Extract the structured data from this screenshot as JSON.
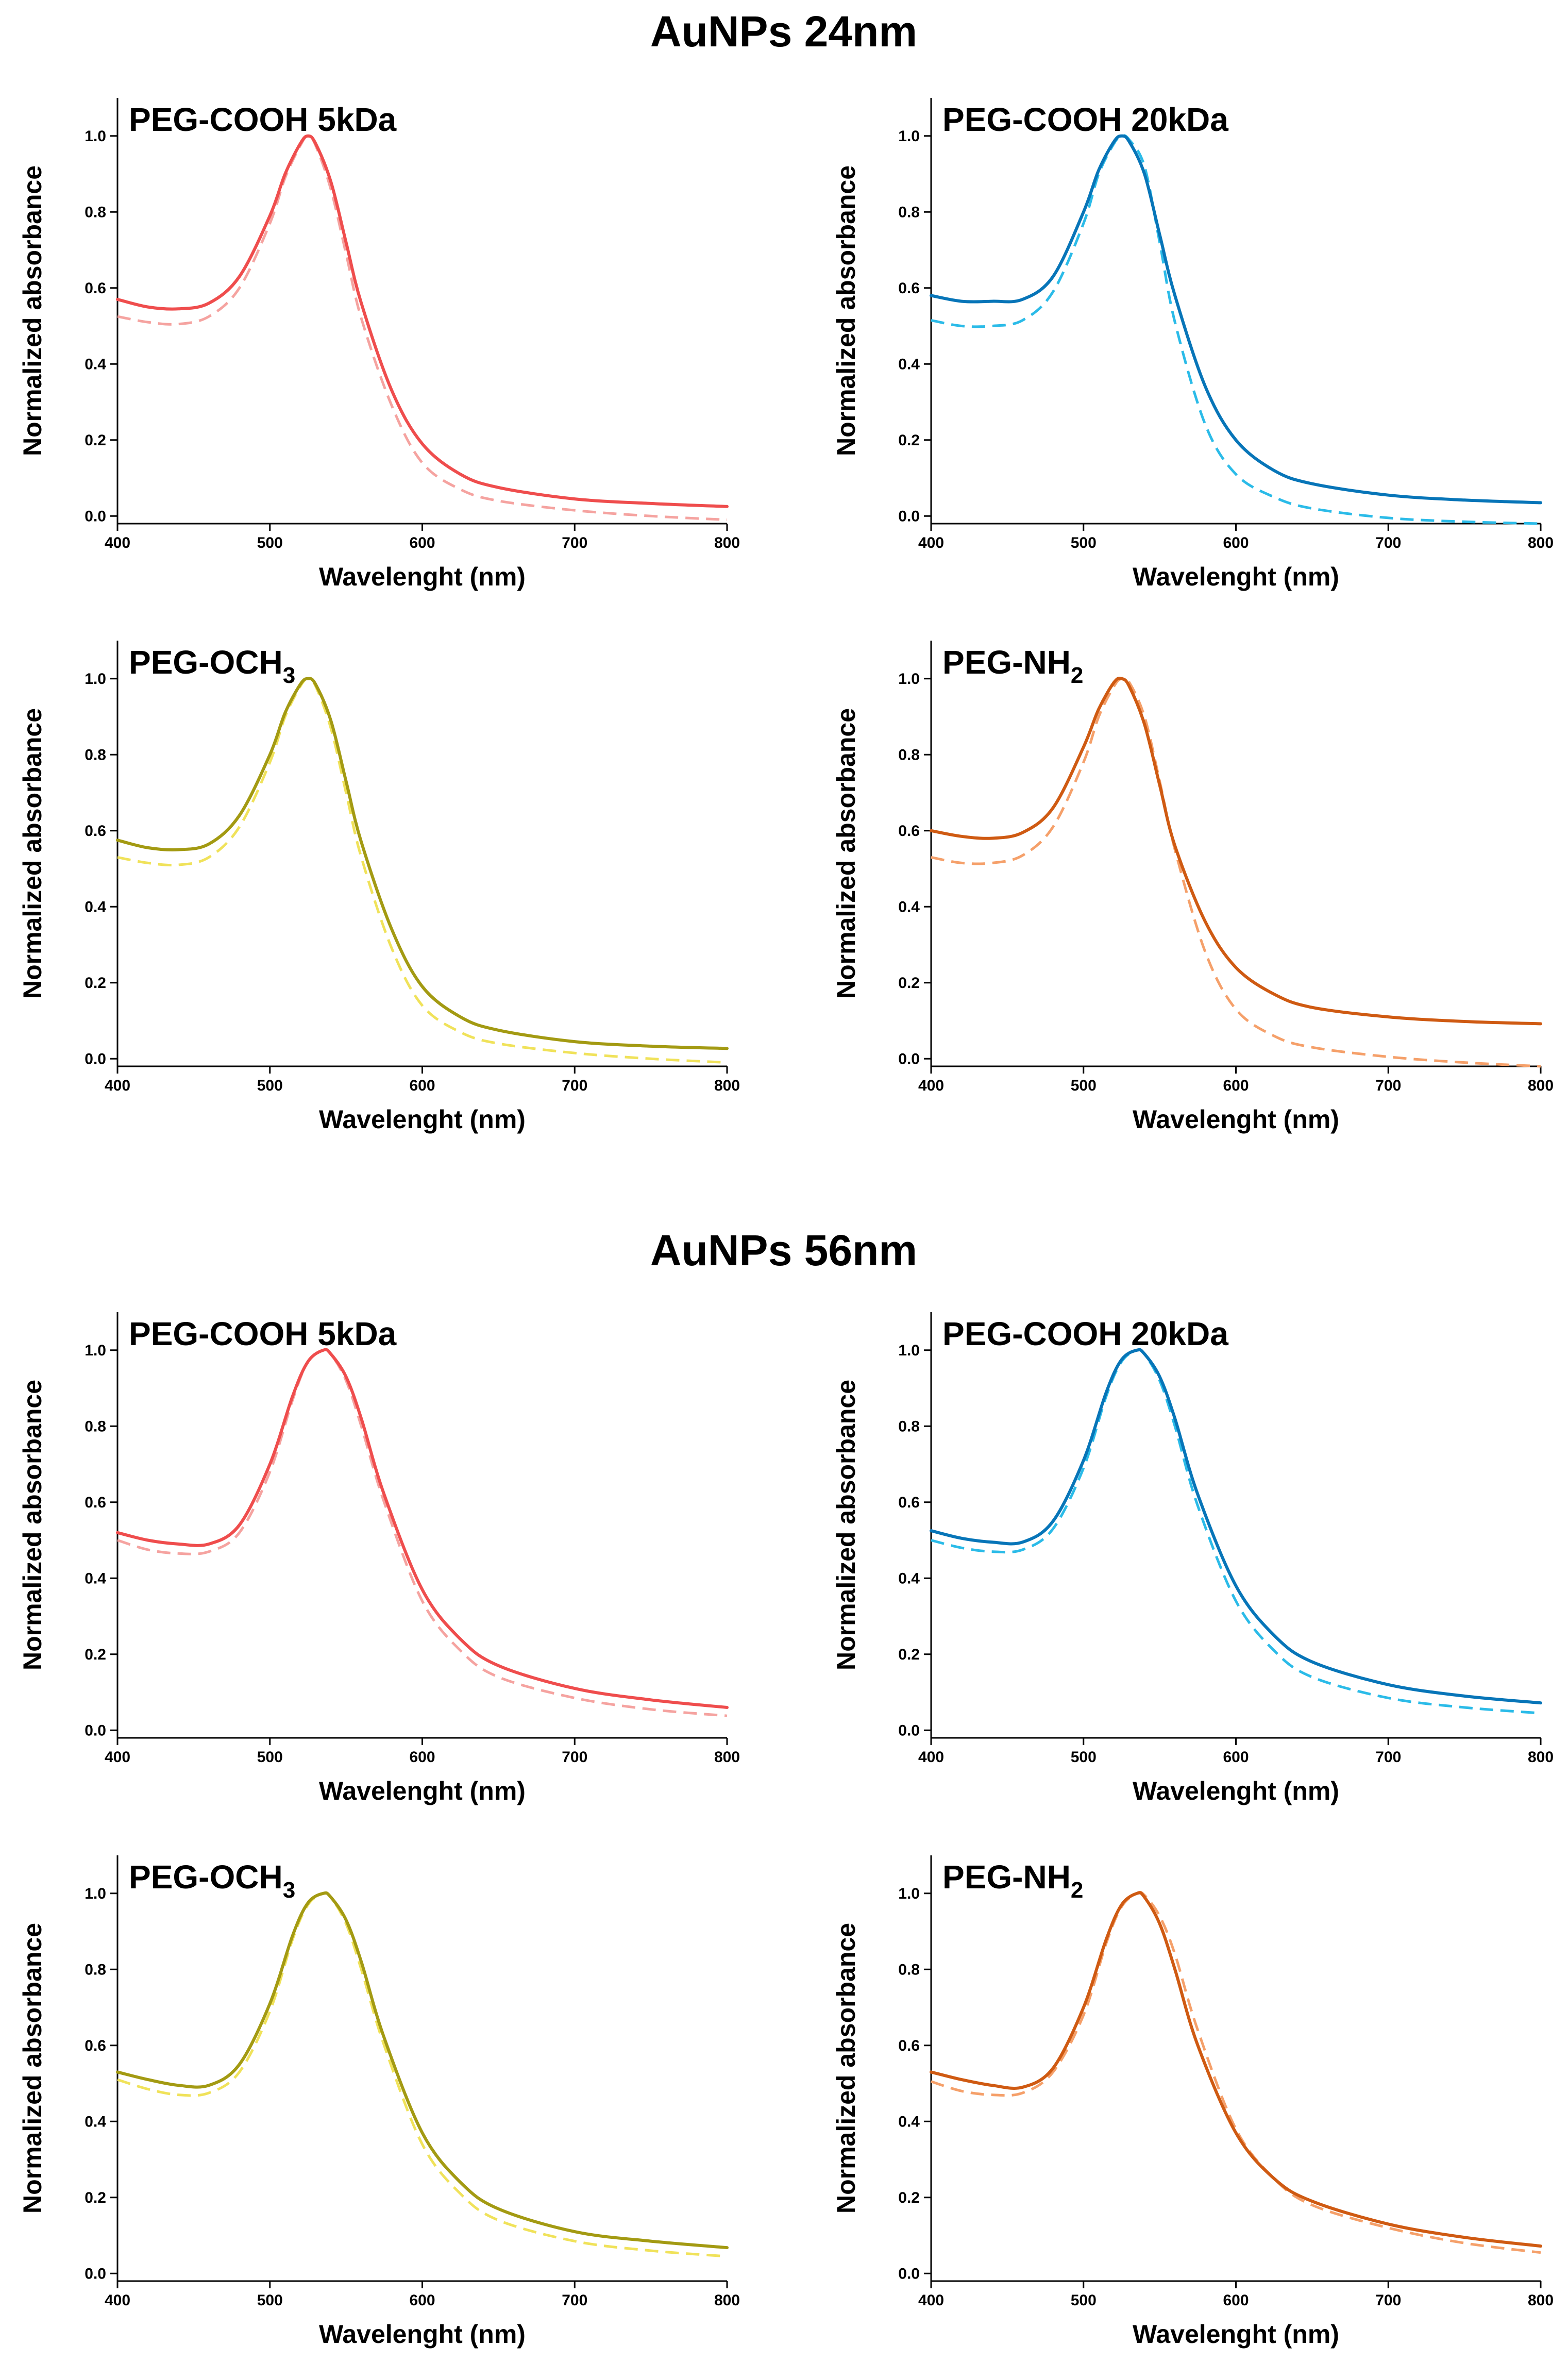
{
  "figure": {
    "sections": [
      {
        "title": "AuNPs 24nm"
      },
      {
        "title": "AuNPs 56nm"
      }
    ]
  },
  "colors": {
    "red": "#ef4d4d",
    "red_light": "#f5a3a0",
    "blue": "#0775b8",
    "blue_light": "#2bbbe8",
    "olive": "#a39a12",
    "olive_light": "#f0e25a",
    "orange": "#cf5a12",
    "orange_light": "#f5a06a"
  },
  "chart_data": [
    {
      "type": "line",
      "section": "AuNPs 24nm",
      "title": "PEG-COOH 5kDa",
      "title_main": "PEG-COOH 5kDa",
      "title_sub": "",
      "xlabel": "Wavelenght (nm)",
      "ylabel": "Normalized absorbance",
      "xlim": [
        400,
        800
      ],
      "ylim": [
        -0.02,
        1.1
      ],
      "xticks": [
        "400",
        "500",
        "600",
        "700",
        "800"
      ],
      "yticks": [
        "0.0",
        "0.2",
        "0.4",
        "0.6",
        "0.8",
        "1.0"
      ],
      "x": [
        400,
        420,
        440,
        460,
        480,
        500,
        510,
        520,
        525,
        530,
        540,
        550,
        560,
        580,
        600,
        625,
        650,
        700,
        750,
        800
      ],
      "series": [
        {
          "name": "solid",
          "style": "solid",
          "color": "#ef4d4d",
          "values": [
            0.57,
            0.55,
            0.545,
            0.56,
            0.63,
            0.79,
            0.9,
            0.98,
            1.0,
            0.98,
            0.88,
            0.72,
            0.56,
            0.33,
            0.19,
            0.11,
            0.075,
            0.045,
            0.033,
            0.025
          ]
        },
        {
          "name": "dashed",
          "style": "dashed",
          "color": "#f5a3a0",
          "values": [
            0.525,
            0.51,
            0.505,
            0.525,
            0.6,
            0.77,
            0.89,
            0.975,
            1.0,
            0.975,
            0.86,
            0.69,
            0.52,
            0.29,
            0.14,
            0.07,
            0.04,
            0.015,
            0.0,
            -0.01
          ]
        }
      ]
    },
    {
      "type": "line",
      "section": "AuNPs 24nm",
      "title": "PEG-COOH 20kDa",
      "title_main": "PEG-COOH 20kDa",
      "title_sub": "",
      "xlabel": "Wavelenght (nm)",
      "ylabel": "Normalized absorbance",
      "xlim": [
        400,
        800
      ],
      "ylim": [
        -0.02,
        1.1
      ],
      "xticks": [
        "400",
        "500",
        "600",
        "700",
        "800"
      ],
      "yticks": [
        "0.0",
        "0.2",
        "0.4",
        "0.6",
        "0.8",
        "1.0"
      ],
      "x": [
        400,
        420,
        440,
        460,
        480,
        500,
        510,
        520,
        525,
        530,
        540,
        550,
        560,
        580,
        600,
        625,
        650,
        700,
        750,
        800
      ],
      "series": [
        {
          "name": "solid",
          "style": "solid",
          "color": "#0775b8",
          "values": [
            0.58,
            0.565,
            0.565,
            0.57,
            0.63,
            0.8,
            0.91,
            0.985,
            1.0,
            0.985,
            0.9,
            0.74,
            0.58,
            0.34,
            0.2,
            0.12,
            0.085,
            0.055,
            0.042,
            0.035
          ]
        },
        {
          "name": "dashed",
          "style": "dashed",
          "color": "#2bbbe8",
          "values": [
            0.515,
            0.5,
            0.5,
            0.515,
            0.59,
            0.77,
            0.9,
            0.98,
            1.0,
            0.99,
            0.92,
            0.72,
            0.51,
            0.24,
            0.11,
            0.05,
            0.02,
            -0.005,
            -0.015,
            -0.02
          ]
        }
      ]
    },
    {
      "type": "line",
      "section": "AuNPs 24nm",
      "title": "PEG-OCH3",
      "title_main": "PEG-OCH",
      "title_sub": "3",
      "xlabel": "Wavelenght (nm)",
      "ylabel": "Normalized absorbance",
      "xlim": [
        400,
        800
      ],
      "ylim": [
        -0.02,
        1.1
      ],
      "xticks": [
        "400",
        "500",
        "600",
        "700",
        "800"
      ],
      "yticks": [
        "0.0",
        "0.2",
        "0.4",
        "0.6",
        "0.8",
        "1.0"
      ],
      "x": [
        400,
        420,
        440,
        460,
        480,
        500,
        510,
        520,
        525,
        530,
        540,
        550,
        560,
        580,
        600,
        625,
        650,
        700,
        750,
        800
      ],
      "series": [
        {
          "name": "solid",
          "style": "solid",
          "color": "#a39a12",
          "values": [
            0.575,
            0.555,
            0.55,
            0.565,
            0.64,
            0.8,
            0.91,
            0.985,
            1.0,
            0.985,
            0.89,
            0.73,
            0.57,
            0.34,
            0.19,
            0.11,
            0.075,
            0.045,
            0.033,
            0.027
          ]
        },
        {
          "name": "dashed",
          "style": "dashed",
          "color": "#f0e25a",
          "values": [
            0.53,
            0.515,
            0.51,
            0.53,
            0.61,
            0.78,
            0.9,
            0.98,
            1.0,
            0.98,
            0.87,
            0.7,
            0.53,
            0.29,
            0.14,
            0.07,
            0.04,
            0.015,
            0.0,
            -0.01
          ]
        }
      ]
    },
    {
      "type": "line",
      "section": "AuNPs 24nm",
      "title": "PEG-NH2",
      "title_main": "PEG-NH",
      "title_sub": "2",
      "xlabel": "Wavelenght (nm)",
      "ylabel": "Normalized absorbance",
      "xlim": [
        400,
        800
      ],
      "ylim": [
        -0.02,
        1.1
      ],
      "xticks": [
        "400",
        "500",
        "600",
        "700",
        "800"
      ],
      "yticks": [
        "0.0",
        "0.2",
        "0.4",
        "0.6",
        "0.8",
        "1.0"
      ],
      "x": [
        400,
        420,
        440,
        460,
        480,
        500,
        510,
        520,
        525,
        530,
        540,
        550,
        560,
        580,
        600,
        625,
        650,
        700,
        750,
        800
      ],
      "series": [
        {
          "name": "solid",
          "style": "solid",
          "color": "#cf5a12",
          "values": [
            0.6,
            0.585,
            0.58,
            0.595,
            0.66,
            0.82,
            0.92,
            0.99,
            1.0,
            0.98,
            0.88,
            0.72,
            0.56,
            0.36,
            0.24,
            0.17,
            0.135,
            0.11,
            0.098,
            0.092
          ]
        },
        {
          "name": "dashed",
          "style": "dashed",
          "color": "#f5a06a",
          "values": [
            0.53,
            0.515,
            0.515,
            0.535,
            0.61,
            0.78,
            0.9,
            0.98,
            1.0,
            0.99,
            0.9,
            0.73,
            0.55,
            0.28,
            0.13,
            0.06,
            0.03,
            0.005,
            -0.01,
            -0.02
          ]
        }
      ]
    },
    {
      "type": "line",
      "section": "AuNPs 56nm",
      "title": "PEG-COOH 5kDa",
      "title_main": "PEG-COOH 5kDa",
      "title_sub": "",
      "xlabel": "Wavelenght (nm)",
      "ylabel": "Normalized absorbance",
      "xlim": [
        400,
        800
      ],
      "ylim": [
        -0.02,
        1.1
      ],
      "xticks": [
        "400",
        "500",
        "600",
        "700",
        "800"
      ],
      "yticks": [
        "0.0",
        "0.2",
        "0.4",
        "0.6",
        "0.8",
        "1.0"
      ],
      "x": [
        400,
        420,
        440,
        460,
        480,
        500,
        515,
        525,
        535,
        540,
        550,
        560,
        575,
        600,
        625,
        650,
        700,
        750,
        800
      ],
      "series": [
        {
          "name": "solid",
          "style": "solid",
          "color": "#ef4d4d",
          "values": [
            0.52,
            0.5,
            0.49,
            0.49,
            0.54,
            0.7,
            0.88,
            0.97,
            1.0,
            0.99,
            0.93,
            0.82,
            0.62,
            0.37,
            0.24,
            0.17,
            0.11,
            0.08,
            0.06
          ]
        },
        {
          "name": "dashed",
          "style": "dashed",
          "color": "#f5a3a0",
          "values": [
            0.5,
            0.475,
            0.465,
            0.47,
            0.52,
            0.68,
            0.87,
            0.97,
            1.0,
            0.99,
            0.92,
            0.8,
            0.6,
            0.34,
            0.21,
            0.14,
            0.085,
            0.055,
            0.038
          ]
        }
      ]
    },
    {
      "type": "line",
      "section": "AuNPs 56nm",
      "title": "PEG-COOH 20kDa",
      "title_main": "PEG-COOH 20kDa",
      "title_sub": "",
      "xlabel": "Wavelenght (nm)",
      "ylabel": "Normalized absorbance",
      "xlim": [
        400,
        800
      ],
      "ylim": [
        -0.02,
        1.1
      ],
      "xticks": [
        "400",
        "500",
        "600",
        "700",
        "800"
      ],
      "yticks": [
        "0.0",
        "0.2",
        "0.4",
        "0.6",
        "0.8",
        "1.0"
      ],
      "x": [
        400,
        420,
        440,
        460,
        480,
        500,
        515,
        525,
        535,
        540,
        550,
        560,
        575,
        600,
        625,
        650,
        700,
        750,
        800
      ],
      "series": [
        {
          "name": "solid",
          "style": "solid",
          "color": "#0775b8",
          "values": [
            0.525,
            0.505,
            0.495,
            0.495,
            0.55,
            0.71,
            0.89,
            0.975,
            1.0,
            0.99,
            0.93,
            0.82,
            0.62,
            0.38,
            0.25,
            0.18,
            0.12,
            0.09,
            0.072
          ]
        },
        {
          "name": "dashed",
          "style": "dashed",
          "color": "#2bbbe8",
          "values": [
            0.5,
            0.48,
            0.47,
            0.475,
            0.53,
            0.69,
            0.88,
            0.97,
            1.0,
            0.99,
            0.92,
            0.8,
            0.59,
            0.34,
            0.21,
            0.14,
            0.085,
            0.06,
            0.045
          ]
        }
      ]
    },
    {
      "type": "line",
      "section": "AuNPs 56nm",
      "title": "PEG-OCH3",
      "title_main": "PEG-OCH",
      "title_sub": "3",
      "xlabel": "Wavelenght (nm)",
      "ylabel": "Normalized absorbance",
      "xlim": [
        400,
        800
      ],
      "ylim": [
        -0.02,
        1.1
      ],
      "xticks": [
        "400",
        "500",
        "600",
        "700",
        "800"
      ],
      "yticks": [
        "0.0",
        "0.2",
        "0.4",
        "0.6",
        "0.8",
        "1.0"
      ],
      "x": [
        400,
        420,
        440,
        460,
        480,
        500,
        515,
        525,
        535,
        540,
        550,
        560,
        575,
        600,
        625,
        650,
        700,
        750,
        800
      ],
      "series": [
        {
          "name": "solid",
          "style": "solid",
          "color": "#a39a12",
          "values": [
            0.53,
            0.51,
            0.495,
            0.495,
            0.55,
            0.71,
            0.89,
            0.975,
            1.0,
            0.99,
            0.93,
            0.82,
            0.62,
            0.37,
            0.24,
            0.17,
            0.11,
            0.085,
            0.068
          ]
        },
        {
          "name": "dashed",
          "style": "dashed",
          "color": "#f0e25a",
          "values": [
            0.51,
            0.485,
            0.47,
            0.475,
            0.53,
            0.69,
            0.88,
            0.97,
            1.0,
            0.99,
            0.92,
            0.8,
            0.6,
            0.34,
            0.21,
            0.14,
            0.085,
            0.06,
            0.045
          ]
        }
      ]
    },
    {
      "type": "line",
      "section": "AuNPs 56nm",
      "title": "PEG-NH2",
      "title_main": "PEG-NH",
      "title_sub": "2",
      "xlabel": "Wavelenght (nm)",
      "ylabel": "Normalized absorbance",
      "xlim": [
        400,
        800
      ],
      "ylim": [
        -0.02,
        1.1
      ],
      "xticks": [
        "400",
        "500",
        "600",
        "700",
        "800"
      ],
      "yticks": [
        "0.0",
        "0.2",
        "0.4",
        "0.6",
        "0.8",
        "1.0"
      ],
      "x": [
        400,
        420,
        440,
        460,
        480,
        500,
        515,
        525,
        535,
        540,
        550,
        560,
        575,
        600,
        625,
        650,
        700,
        750,
        800
      ],
      "series": [
        {
          "name": "solid",
          "style": "solid",
          "color": "#cf5a12",
          "values": [
            0.53,
            0.51,
            0.495,
            0.49,
            0.54,
            0.7,
            0.88,
            0.97,
            1.0,
            0.99,
            0.92,
            0.8,
            0.6,
            0.37,
            0.25,
            0.19,
            0.13,
            0.095,
            0.072
          ]
        },
        {
          "name": "dashed",
          "style": "dashed",
          "color": "#f5a06a",
          "values": [
            0.505,
            0.48,
            0.47,
            0.475,
            0.53,
            0.68,
            0.87,
            0.965,
            1.0,
            0.995,
            0.94,
            0.84,
            0.64,
            0.38,
            0.25,
            0.18,
            0.12,
            0.08,
            0.055
          ]
        }
      ]
    }
  ]
}
